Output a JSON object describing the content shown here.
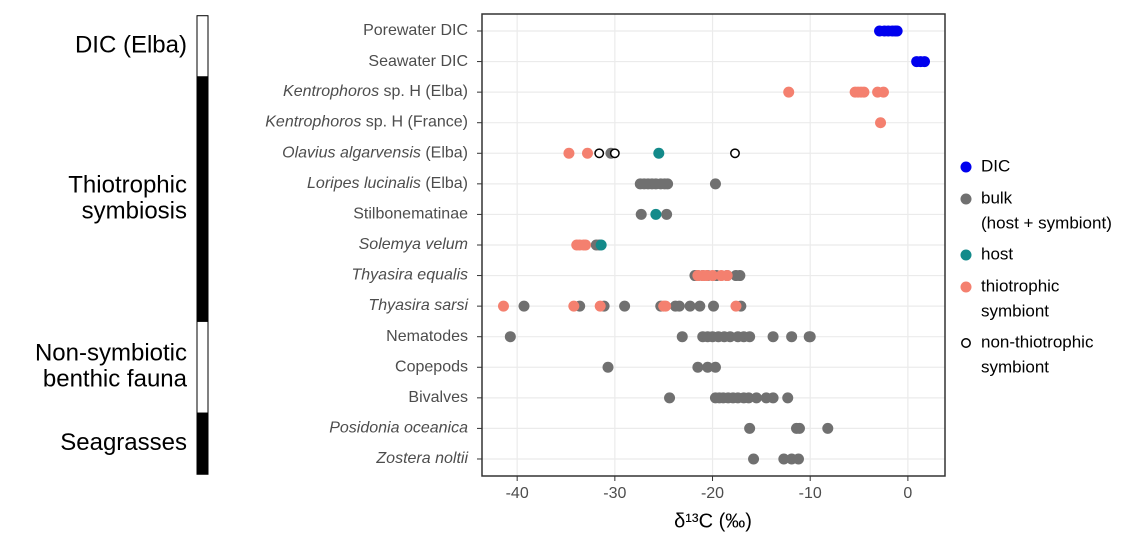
{
  "chart_data": {
    "type": "strip",
    "xlabel": "δ¹³C (‰)",
    "xlim": [
      -43.6,
      3.8
    ],
    "xticks": [
      -40,
      -30,
      -20,
      -10,
      0
    ],
    "grid": true,
    "legend_position": "right",
    "categories": [
      "Porewater DIC",
      "Seawater DIC",
      "Kentrophoros sp. H (Elba)",
      "Kentrophoros sp. H (France)",
      "Olavius algarvensis (Elba)",
      "Loripes lucinalis (Elba)",
      "Stilbonematinae",
      "Solemya velum",
      "Thyasira equalis",
      "Thyasira sarsi",
      "Nematodes",
      "Copepods",
      "Bivalves",
      "Posidonia oceanica",
      "Zostera noltii"
    ],
    "category_italic_words": [
      0,
      0,
      1,
      1,
      2,
      2,
      0,
      2,
      2,
      2,
      0,
      0,
      0,
      2,
      2
    ],
    "groups": [
      {
        "label": [
          "DIC (Elba)"
        ],
        "rows": [
          0,
          1
        ],
        "fill": "#ffffff"
      },
      {
        "label": [
          "Thiotrophic",
          "symbiosis"
        ],
        "rows": [
          2,
          9
        ],
        "fill": "#000000"
      },
      {
        "label": [
          "Non-symbiotic",
          "benthic fauna"
        ],
        "rows": [
          10,
          12
        ],
        "fill": "#ffffff"
      },
      {
        "label": [
          "Seagrasses"
        ],
        "rows": [
          13,
          14
        ],
        "fill": "#000000"
      }
    ],
    "series": [
      {
        "name": [
          "DIC"
        ],
        "color": "#0000ee",
        "hollow": false,
        "points": [
          {
            "y": "Porewater DIC",
            "x": [
              -2.9,
              -2.4,
              -2,
              -1.6,
              -1.3,
              -1.1
            ]
          },
          {
            "y": "Seawater DIC",
            "x": [
              0.9,
              1.3,
              1.7
            ]
          }
        ]
      },
      {
        "name": [
          "bulk",
          "(host + symbiont)"
        ],
        "color": "#707070",
        "hollow": false,
        "points": [
          {
            "y": "Olavius algarvensis (Elba)",
            "x": [
              -30.4
            ]
          },
          {
            "y": "Loripes lucinalis (Elba)",
            "x": [
              -27.4,
              -27,
              -26.6,
              -26.2,
              -25.8,
              -25.3,
              -24.9,
              -24.6,
              -19.7
            ]
          },
          {
            "y": "Stilbonematinae",
            "x": [
              -27.3,
              -24.7
            ]
          },
          {
            "y": "Solemya velum",
            "x": [
              -31.9,
              -31.6
            ]
          },
          {
            "y": "Thyasira equalis",
            "x": [
              -21.8,
              -21.5,
              -21,
              -20.5,
              -19.6,
              -18.5,
              -17.6,
              -17.2
            ]
          },
          {
            "y": "Thyasira sarsi",
            "x": [
              -39.3,
              -33.6,
              -31.1,
              -29,
              -25.3,
              -23.8,
              -23.4,
              -22.3,
              -21.3,
              -19.9,
              -17.1
            ]
          },
          {
            "y": "Nematodes",
            "x": [
              -40.7,
              -23.1,
              -21,
              -20.5,
              -20,
              -19.4,
              -18.8,
              -18.2,
              -17.4,
              -16.8,
              -16.2,
              -13.8,
              -11.9,
              -10.1,
              -10
            ]
          },
          {
            "y": "Copepods",
            "x": [
              -30.7,
              -21.5,
              -20.5,
              -19.7
            ]
          },
          {
            "y": "Bivalves",
            "x": [
              -24.4,
              -19.7,
              -19.3,
              -18.9,
              -18.4,
              -17.9,
              -17.4,
              -16.8,
              -16.3,
              -15.5,
              -14.5,
              -13.8,
              -12.3
            ]
          },
          {
            "y": "Posidonia oceanica",
            "x": [
              -16.2,
              -11.4,
              -11.1,
              -8.2
            ]
          },
          {
            "y": "Zostera noltii",
            "x": [
              -15.8,
              -12.7,
              -11.9,
              -11.2
            ]
          }
        ]
      },
      {
        "name": [
          "host"
        ],
        "color": "#138a8a",
        "hollow": false,
        "points": [
          {
            "y": "Olavius algarvensis (Elba)",
            "x": [
              -25.5
            ]
          },
          {
            "y": "Stilbonematinae",
            "x": [
              -25.8
            ]
          },
          {
            "y": "Solemya velum",
            "x": [
              -31.4
            ]
          }
        ]
      },
      {
        "name": [
          "thiotrophic",
          "symbiont"
        ],
        "color": "#f4806f",
        "hollow": false,
        "points": [
          {
            "y": "Kentrophoros sp. H (Elba)",
            "x": [
              -12.2,
              -5.4,
              -5.1,
              -4.8,
              -4.5,
              -3.1,
              -2.5
            ]
          },
          {
            "y": "Kentrophoros sp. H (France)",
            "x": [
              -2.8
            ]
          },
          {
            "y": "Olavius algarvensis (Elba)",
            "x": [
              -34.7,
              -32.8
            ]
          },
          {
            "y": "Solemya velum",
            "x": [
              -33.9,
              -33.6,
              -33.2,
              -33
            ]
          },
          {
            "y": "Thyasira equalis",
            "x": [
              -21.5,
              -21,
              -20.6,
              -20,
              -19.1,
              -18.5
            ]
          },
          {
            "y": "Thyasira sarsi",
            "x": [
              -41.4,
              -34.2,
              -31.5,
              -25,
              -24.8,
              -17.6
            ]
          }
        ]
      },
      {
        "name": [
          "non-thiotrophic",
          "symbiont"
        ],
        "color": "#000000",
        "hollow": true,
        "points": [
          {
            "y": "Olavius algarvensis (Elba)",
            "x": [
              -31.6,
              -30,
              -17.7
            ]
          }
        ]
      }
    ]
  }
}
